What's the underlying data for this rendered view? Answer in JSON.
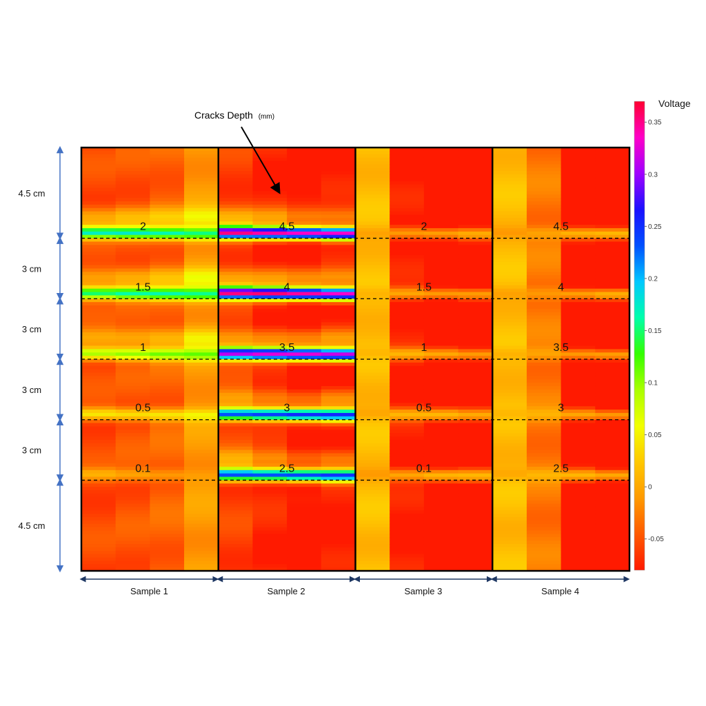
{
  "chart_data": {
    "type": "heatmap",
    "title": "",
    "annotation": "Cracks Depth",
    "annotation_unit": "(mm)",
    "colorbar": {
      "label": "Voltage",
      "min": -0.08,
      "max": 0.37,
      "ticks": [
        0.35,
        0.3,
        0.25,
        0.2,
        0.15,
        0.1,
        0.05,
        0,
        -0.05
      ],
      "tick_labels": [
        "0.35",
        "0.3",
        "0.25",
        "0.2",
        "0.15",
        "0.1",
        "0.05",
        "0",
        "-0.05"
      ]
    },
    "samples": [
      {
        "name": "Sample 1",
        "crack_depths": [
          "2",
          "1.5",
          "1",
          "0.5",
          "0.1"
        ],
        "crack_voltage": [
          0.16,
          0.15,
          0.1,
          0.05,
          0.0
        ],
        "column_offsets": [
          -0.025,
          -0.02,
          -0.012,
          0.02
        ],
        "background_voltage": -0.03
      },
      {
        "name": "Sample 2",
        "crack_depths": [
          "4.5",
          "4",
          "3.5",
          "3",
          "2.5"
        ],
        "crack_voltage": [
          0.34,
          0.34,
          0.31,
          0.24,
          0.24
        ],
        "column_offsets": [
          -0.03,
          -0.045,
          -0.06,
          -0.05
        ],
        "background_voltage": -0.03
      },
      {
        "name": "Sample 3",
        "crack_depths": [
          "2",
          "1.5",
          "1",
          "0.5",
          "0.1"
        ],
        "crack_voltage": [
          0.0,
          0.0,
          0.0,
          0.0,
          0.0
        ],
        "column_offsets": [
          0.055,
          -0.04,
          -0.06,
          -0.055
        ],
        "background_voltage": -0.04
      },
      {
        "name": "Sample 4",
        "crack_depths": [
          "4.5",
          "4",
          "3.5",
          "3",
          "2.5"
        ],
        "crack_voltage": [
          0.0,
          0.0,
          0.0,
          0.0,
          0.0
        ],
        "column_offsets": [
          0.065,
          0.02,
          -0.045,
          -0.06
        ],
        "background_voltage": -0.05
      }
    ],
    "segments": [
      {
        "label": "4.5 cm",
        "length_cm": 4.5
      },
      {
        "label": "3 cm",
        "length_cm": 3
      },
      {
        "label": "3 cm",
        "length_cm": 3
      },
      {
        "label": "3 cm",
        "length_cm": 3
      },
      {
        "label": "3 cm",
        "length_cm": 3
      },
      {
        "label": "4.5 cm",
        "length_cm": 4.5
      }
    ],
    "colors": {
      "scale": [
        "#ff1a00",
        "#ff5a00",
        "#ff9a00",
        "#ffc800",
        "#f2ff00",
        "#aaff00",
        "#33ff00",
        "#00ffaa",
        "#00c8ff",
        "#0050ff",
        "#1a10ff",
        "#a000ff",
        "#ff00c8",
        "#ff0030"
      ],
      "grid_line": "#000000",
      "dimension_line": "#4472c4",
      "sample_arrow": "#1f3864"
    }
  }
}
